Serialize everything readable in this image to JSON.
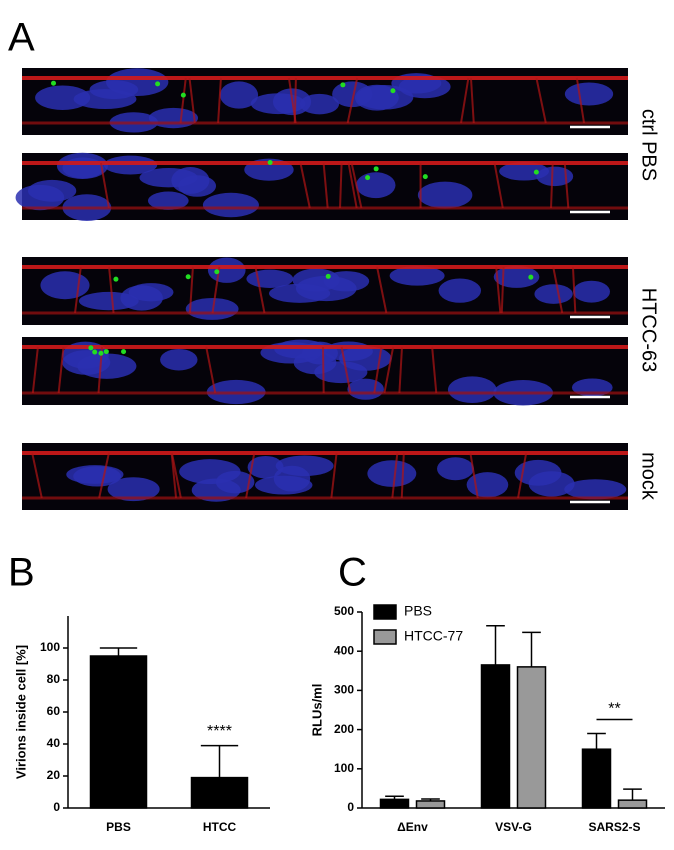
{
  "panel_a": {
    "label": "A",
    "rows": [
      {
        "label": "ctrl PBS"
      },
      {
        "label": "HTCC-63"
      },
      {
        "label": "mock"
      }
    ]
  },
  "chart_data": [
    {
      "type": "bar",
      "panel_label": "B",
      "y_label": "Virions inside cell [%]",
      "categories": [
        "PBS",
        "HTCC"
      ],
      "series": [
        {
          "name": null,
          "color": "#000000",
          "values": [
            95,
            19
          ],
          "errors": [
            5,
            20
          ]
        }
      ],
      "ylim": [
        0,
        120
      ],
      "yticks": [
        0,
        20,
        40,
        60,
        80,
        100
      ],
      "annotations": [
        {
          "text": "****",
          "category": 1
        }
      ]
    },
    {
      "type": "bar",
      "panel_label": "C",
      "y_label": "RLUs/ml",
      "categories": [
        "ΔEnv",
        "VSV-G",
        "SARS2-S"
      ],
      "series": [
        {
          "name": "PBS",
          "color": "#000000",
          "values": [
            22,
            365,
            150
          ],
          "errors": [
            8,
            100,
            40
          ]
        },
        {
          "name": "HTCC-77",
          "color": "#999999",
          "values": [
            18,
            360,
            20
          ],
          "errors": [
            5,
            88,
            28
          ]
        }
      ],
      "ylim": [
        0,
        500
      ],
      "yticks": [
        0,
        100,
        200,
        300,
        400,
        500
      ],
      "legend": "upper left",
      "annotations": [
        {
          "text": "**",
          "category": 2
        }
      ]
    }
  ]
}
